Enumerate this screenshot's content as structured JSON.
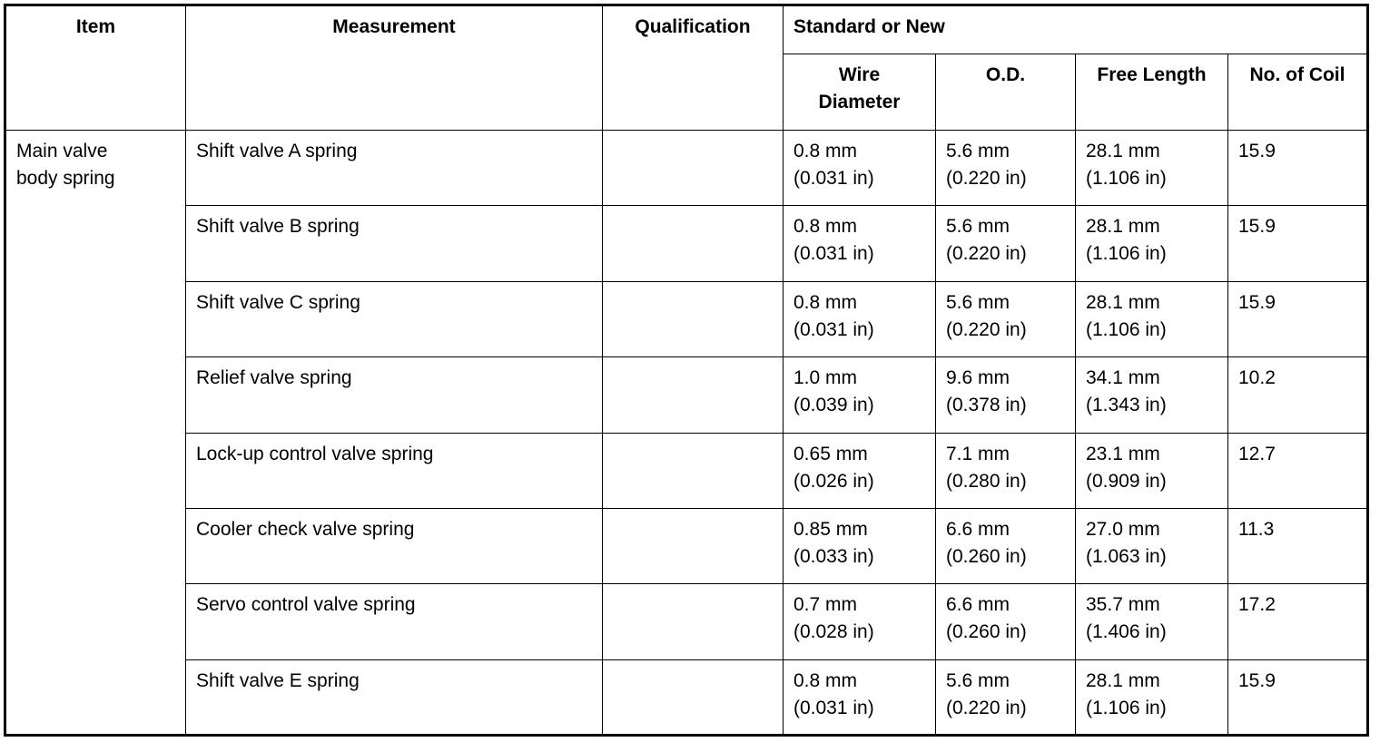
{
  "headers": {
    "item": "Item",
    "measurement": "Measurement",
    "qualification": "Qualification",
    "standard": "Standard or New",
    "wire_diameter": [
      "Wire",
      "Diameter"
    ],
    "od": "O.D.",
    "free_length": "Free Length",
    "coils": "No. of Coil"
  },
  "item": [
    "Main valve",
    "body spring"
  ],
  "rows": [
    {
      "measurement": "Shift valve A spring",
      "qualification": "",
      "wire": [
        "0.8 mm",
        "(0.031 in)"
      ],
      "od": [
        "5.6 mm",
        "(0.220 in)"
      ],
      "length": [
        "28.1 mm",
        "(1.106 in)"
      ],
      "coils": "15.9"
    },
    {
      "measurement": "Shift valve B spring",
      "qualification": "",
      "wire": [
        "0.8 mm",
        "(0.031 in)"
      ],
      "od": [
        "5.6 mm",
        "(0.220 in)"
      ],
      "length": [
        "28.1 mm",
        "(1.106 in)"
      ],
      "coils": "15.9"
    },
    {
      "measurement": "Shift valve C spring",
      "qualification": "",
      "wire": [
        "0.8 mm",
        "(0.031 in)"
      ],
      "od": [
        "5.6 mm",
        "(0.220 in)"
      ],
      "length": [
        "28.1 mm",
        "(1.106 in)"
      ],
      "coils": "15.9"
    },
    {
      "measurement": "Relief valve spring",
      "qualification": "",
      "wire": [
        "1.0 mm",
        "(0.039 in)"
      ],
      "od": [
        "9.6 mm",
        "(0.378 in)"
      ],
      "length": [
        "34.1 mm",
        "(1.343 in)"
      ],
      "coils": "10.2"
    },
    {
      "measurement": "Lock-up control valve spring",
      "qualification": "",
      "wire": [
        "0.65 mm",
        "(0.026 in)"
      ],
      "od": [
        "7.1 mm",
        "(0.280 in)"
      ],
      "length": [
        "23.1 mm",
        "(0.909 in)"
      ],
      "coils": "12.7"
    },
    {
      "measurement": "Cooler check valve spring",
      "qualification": "",
      "wire": [
        "0.85 mm",
        "(0.033 in)"
      ],
      "od": [
        "6.6 mm",
        "(0.260 in)"
      ],
      "length": [
        "27.0 mm",
        "(1.063 in)"
      ],
      "coils": "11.3"
    },
    {
      "measurement": "Servo control valve spring",
      "qualification": "",
      "wire": [
        "0.7 mm",
        "(0.028 in)"
      ],
      "od": [
        "6.6 mm",
        "(0.260 in)"
      ],
      "length": [
        "35.7 mm",
        "(1.406 in)"
      ],
      "coils": "17.2"
    },
    {
      "measurement": "Shift valve E spring",
      "qualification": "",
      "wire": [
        "0.8 mm",
        "(0.031 in)"
      ],
      "od": [
        "5.6 mm",
        "(0.220 in)"
      ],
      "length": [
        "28.1 mm",
        "(1.106 in)"
      ],
      "coils": "15.9"
    }
  ]
}
